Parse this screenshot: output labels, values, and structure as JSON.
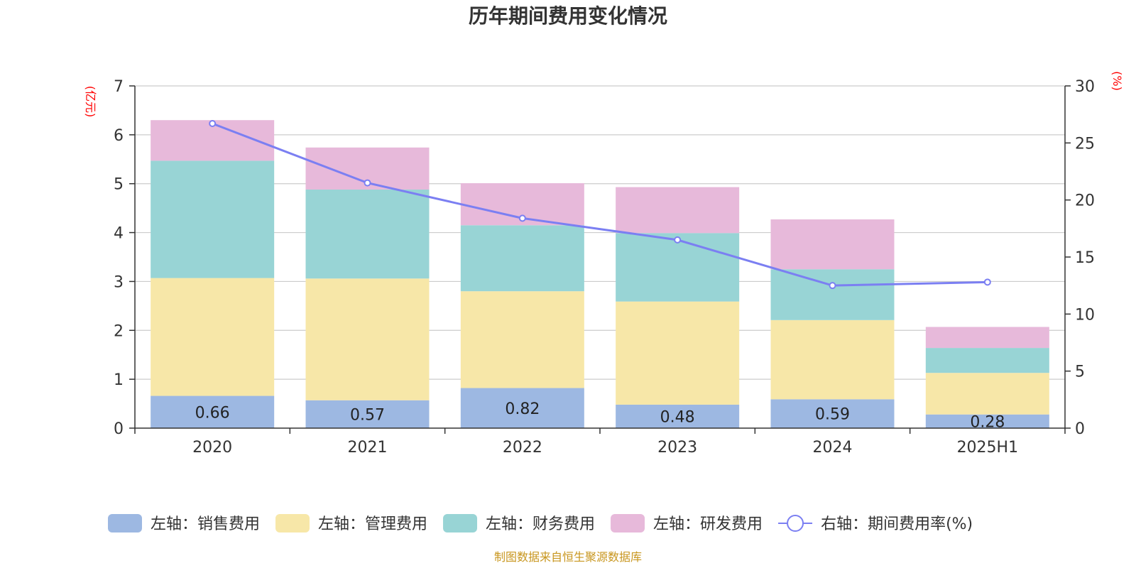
{
  "chart_data": {
    "type": "bar",
    "title": "历年期间费用变化情况",
    "categories": [
      "2020",
      "2021",
      "2022",
      "2023",
      "2024",
      "2025H1"
    ],
    "left_axis": {
      "unit": "(亿元)",
      "ylim": [
        0,
        7
      ],
      "ticks": [
        "0",
        "1",
        "2",
        "3",
        "4",
        "5",
        "6",
        "7"
      ]
    },
    "right_axis": {
      "unit": "(%)",
      "ylim": [
        0,
        30
      ],
      "ticks": [
        "0",
        "5",
        "10",
        "15",
        "20",
        "25",
        "30"
      ]
    },
    "series": [
      {
        "name": "左轴：销售费用",
        "axis": "left",
        "stack": true,
        "color": "#9db8e2",
        "values": [
          0.66,
          0.57,
          0.82,
          0.48,
          0.59,
          0.28
        ],
        "labels": [
          "0.66",
          "0.57",
          "0.82",
          "0.48",
          "0.59",
          "0.28"
        ]
      },
      {
        "name": "左轴：管理费用",
        "axis": "left",
        "stack": true,
        "color": "#f7e7a8",
        "values": [
          2.41,
          2.49,
          1.98,
          2.11,
          1.62,
          0.85
        ]
      },
      {
        "name": "左轴：财务费用",
        "axis": "left",
        "stack": true,
        "color": "#98d4d5",
        "values": [
          2.4,
          1.82,
          1.35,
          1.4,
          1.04,
          0.51
        ]
      },
      {
        "name": "左轴：研发费用",
        "axis": "left",
        "stack": true,
        "color": "#e7b9da",
        "values": [
          0.83,
          0.86,
          0.86,
          0.94,
          1.02,
          0.43
        ]
      },
      {
        "name": "右轴：期间费用率(%)",
        "axis": "right",
        "type": "line",
        "color": "#7b7ff2",
        "values": [
          26.7,
          21.5,
          18.4,
          16.5,
          12.5,
          12.8
        ]
      }
    ],
    "grid": true,
    "legend_position": "bottom"
  },
  "source": "制图数据来自恒生聚源数据库"
}
